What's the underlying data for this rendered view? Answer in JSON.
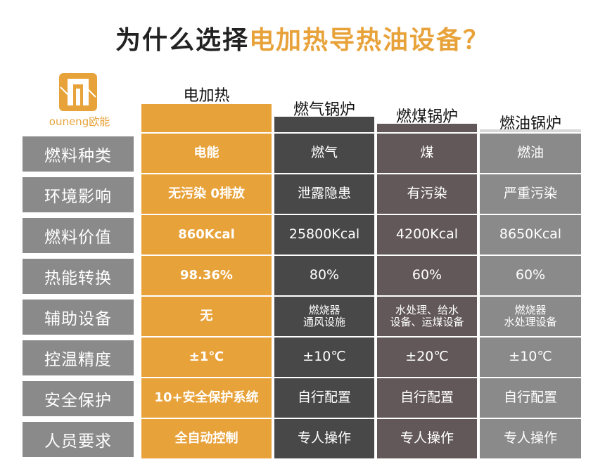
{
  "title": {
    "prefix": "为什么选择",
    "highlight": "电加热导热油设备？"
  },
  "logo": {
    "text": "ouneng欧能"
  },
  "columns": [
    "电加热",
    "燃气锅炉",
    "燃煤锅炉",
    "燃油锅炉"
  ],
  "colors": {
    "electric": "#E8A23A",
    "gas": "#484848",
    "coal": "#625859",
    "oil": "#8a8a8a",
    "label": "#8a8a8a"
  },
  "rows": [
    {
      "label": "燃料种类",
      "values": [
        "电能",
        "燃气",
        "煤",
        "燃油"
      ]
    },
    {
      "label": "环境影响",
      "values": [
        "无污染 0排放",
        "泄露隐患",
        "有污染",
        "严重污染"
      ]
    },
    {
      "label": "燃料价值",
      "values": [
        "860Kcal",
        "25800Kcal",
        "4200Kcal",
        "8650Kcal"
      ]
    },
    {
      "label": "热能转换",
      "values": [
        "98.36%",
        "80%",
        "60%",
        "60%"
      ]
    },
    {
      "label": "辅助设备",
      "values": [
        "无",
        "燃烧器\n通风设施",
        "水处理、给水\n设备、运煤设备",
        "燃烧器\n水处理设备"
      ]
    },
    {
      "label": "控温精度",
      "values": [
        "±1℃",
        "±10℃",
        "±20℃",
        "±10℃"
      ]
    },
    {
      "label": "安全保护",
      "values": [
        "10+安全保护系统",
        "自行配置",
        "自行配置",
        "自行配置"
      ]
    },
    {
      "label": "人员要求",
      "values": [
        "全自动控制",
        "专人操作",
        "专人操作",
        "专人操作"
      ]
    }
  ]
}
